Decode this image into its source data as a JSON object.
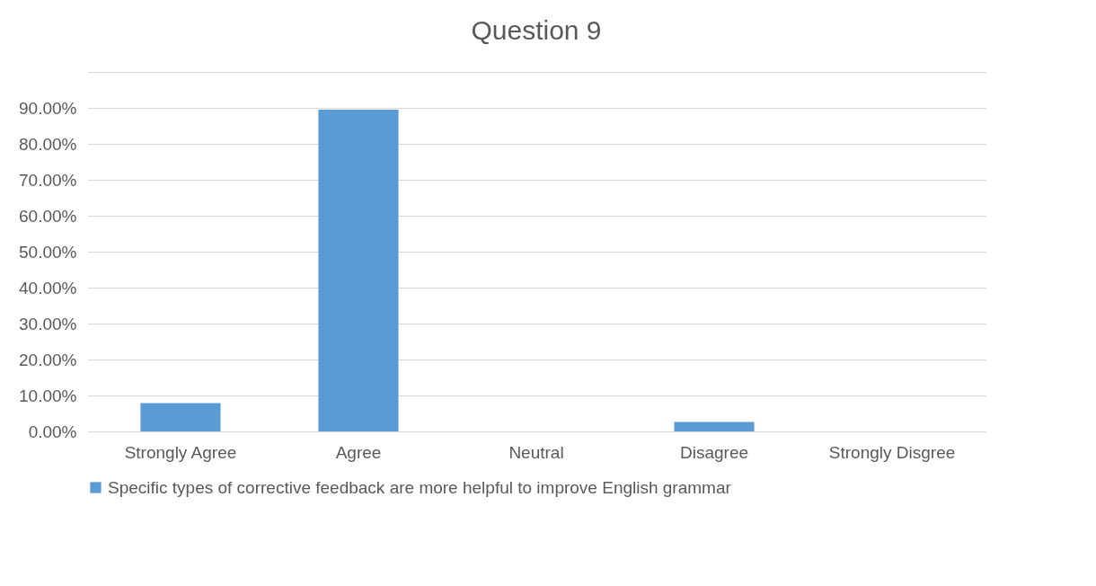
{
  "chart_data": {
    "type": "bar",
    "title": "Question 9",
    "categories": [
      "Strongly Agree",
      "Agree",
      "Neutral",
      "Disagree",
      "Strongly Disgree"
    ],
    "series": [
      {
        "name": "Specific types of corrective feedback are more helpful to improve English grammar",
        "color": "#5b9bd5",
        "values": [
          7.9,
          89.5,
          0,
          2.6,
          0
        ]
      }
    ],
    "ylim": [
      0,
      100
    ],
    "yticks": [
      {
        "value": 0,
        "label": "0.00%"
      },
      {
        "value": 10,
        "label": "10.00%"
      },
      {
        "value": 20,
        "label": "20.00%"
      },
      {
        "value": 30,
        "label": "30.00%"
      },
      {
        "value": 40,
        "label": "40.00%"
      },
      {
        "value": 50,
        "label": "50.00%"
      },
      {
        "value": 60,
        "label": "60.00%"
      },
      {
        "value": 70,
        "label": "70.00%"
      },
      {
        "value": 80,
        "label": "80.00%"
      },
      {
        "value": 90,
        "label": "90.00%"
      },
      {
        "value": 100,
        "label": null
      }
    ],
    "grid": "y",
    "legend": "bottom"
  }
}
